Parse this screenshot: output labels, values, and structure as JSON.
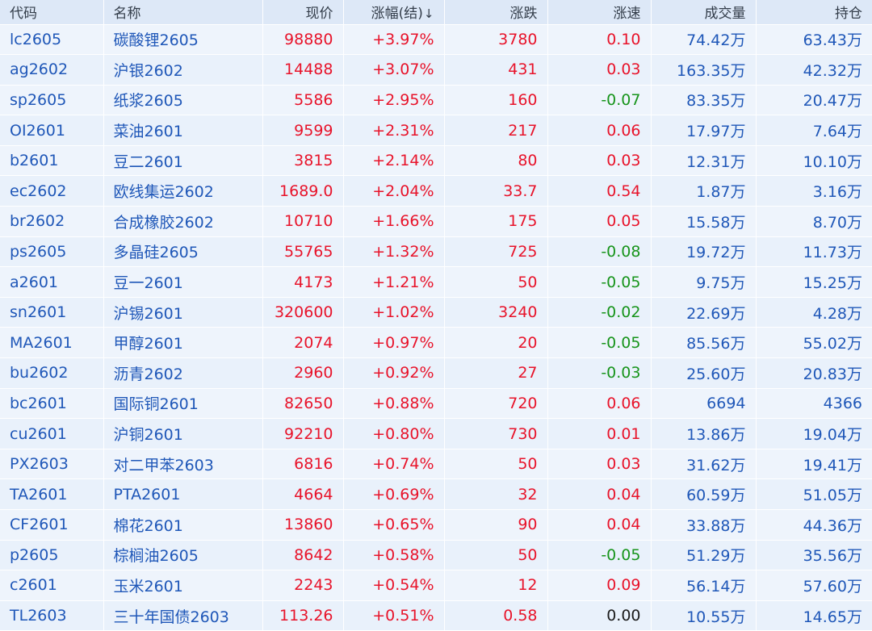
{
  "colors": {
    "up": "#e8132a",
    "down": "#17941b",
    "flat": "#1b1b1b",
    "link": "#1f57b8"
  },
  "headers": {
    "code": "代码",
    "name": "名称",
    "price": "现价",
    "change_pct": "涨幅(结)",
    "sort_icon": "arrow-down-icon",
    "change": "涨跌",
    "speed": "涨速",
    "volume": "成交量",
    "open_interest": "持仓"
  },
  "rows": [
    {
      "code": "lc2605",
      "name": "碳酸锂2605",
      "price": "98880",
      "change_pct": "+3.97%",
      "change": "3780",
      "speed": "0.10",
      "volume": "74.42万",
      "open_interest": "63.43万"
    },
    {
      "code": "ag2602",
      "name": "沪银2602",
      "price": "14488",
      "change_pct": "+3.07%",
      "change": "431",
      "speed": "0.03",
      "volume": "163.35万",
      "open_interest": "42.32万"
    },
    {
      "code": "sp2605",
      "name": "纸浆2605",
      "price": "5586",
      "change_pct": "+2.95%",
      "change": "160",
      "speed": "-0.07",
      "volume": "83.35万",
      "open_interest": "20.47万"
    },
    {
      "code": "OI2601",
      "name": "菜油2601",
      "price": "9599",
      "change_pct": "+2.31%",
      "change": "217",
      "speed": "0.06",
      "volume": "17.97万",
      "open_interest": "7.64万"
    },
    {
      "code": "b2601",
      "name": "豆二2601",
      "price": "3815",
      "change_pct": "+2.14%",
      "change": "80",
      "speed": "0.03",
      "volume": "12.31万",
      "open_interest": "10.10万"
    },
    {
      "code": "ec2602",
      "name": "欧线集运2602",
      "price": "1689.0",
      "change_pct": "+2.04%",
      "change": "33.7",
      "speed": "0.54",
      "volume": "1.87万",
      "open_interest": "3.16万"
    },
    {
      "code": "br2602",
      "name": "合成橡胶2602",
      "price": "10710",
      "change_pct": "+1.66%",
      "change": "175",
      "speed": "0.05",
      "volume": "15.58万",
      "open_interest": "8.70万"
    },
    {
      "code": "ps2605",
      "name": "多晶硅2605",
      "price": "55765",
      "change_pct": "+1.32%",
      "change": "725",
      "speed": "-0.08",
      "volume": "19.72万",
      "open_interest": "11.73万"
    },
    {
      "code": "a2601",
      "name": "豆一2601",
      "price": "4173",
      "change_pct": "+1.21%",
      "change": "50",
      "speed": "-0.05",
      "volume": "9.75万",
      "open_interest": "15.25万"
    },
    {
      "code": "sn2601",
      "name": "沪锡2601",
      "price": "320600",
      "change_pct": "+1.02%",
      "change": "3240",
      "speed": "-0.02",
      "volume": "22.69万",
      "open_interest": "4.28万"
    },
    {
      "code": "MA2601",
      "name": "甲醇2601",
      "price": "2074",
      "change_pct": "+0.97%",
      "change": "20",
      "speed": "-0.05",
      "volume": "85.56万",
      "open_interest": "55.02万"
    },
    {
      "code": "bu2602",
      "name": "沥青2602",
      "price": "2960",
      "change_pct": "+0.92%",
      "change": "27",
      "speed": "-0.03",
      "volume": "25.60万",
      "open_interest": "20.83万"
    },
    {
      "code": "bc2601",
      "name": "国际铜2601",
      "price": "82650",
      "change_pct": "+0.88%",
      "change": "720",
      "speed": "0.06",
      "volume": "6694",
      "open_interest": "4366"
    },
    {
      "code": "cu2601",
      "name": "沪铜2601",
      "price": "92210",
      "change_pct": "+0.80%",
      "change": "730",
      "speed": "0.01",
      "volume": "13.86万",
      "open_interest": "19.04万"
    },
    {
      "code": "PX2603",
      "name": "对二甲苯2603",
      "price": "6816",
      "change_pct": "+0.74%",
      "change": "50",
      "speed": "0.03",
      "volume": "31.62万",
      "open_interest": "19.41万"
    },
    {
      "code": "TA2601",
      "name": "PTA2601",
      "price": "4664",
      "change_pct": "+0.69%",
      "change": "32",
      "speed": "0.04",
      "volume": "60.59万",
      "open_interest": "51.05万"
    },
    {
      "code": "CF2601",
      "name": "棉花2601",
      "price": "13860",
      "change_pct": "+0.65%",
      "change": "90",
      "speed": "0.04",
      "volume": "33.88万",
      "open_interest": "44.36万"
    },
    {
      "code": "p2605",
      "name": "棕榈油2605",
      "price": "8642",
      "change_pct": "+0.58%",
      "change": "50",
      "speed": "-0.05",
      "volume": "51.29万",
      "open_interest": "35.56万"
    },
    {
      "code": "c2601",
      "name": "玉米2601",
      "price": "2243",
      "change_pct": "+0.54%",
      "change": "12",
      "speed": "0.09",
      "volume": "56.14万",
      "open_interest": "57.60万"
    },
    {
      "code": "TL2603",
      "name": "三十年国债2603",
      "price": "113.26",
      "change_pct": "+0.51%",
      "change": "0.58",
      "speed": "0.00",
      "volume": "10.55万",
      "open_interest": "14.65万"
    }
  ]
}
